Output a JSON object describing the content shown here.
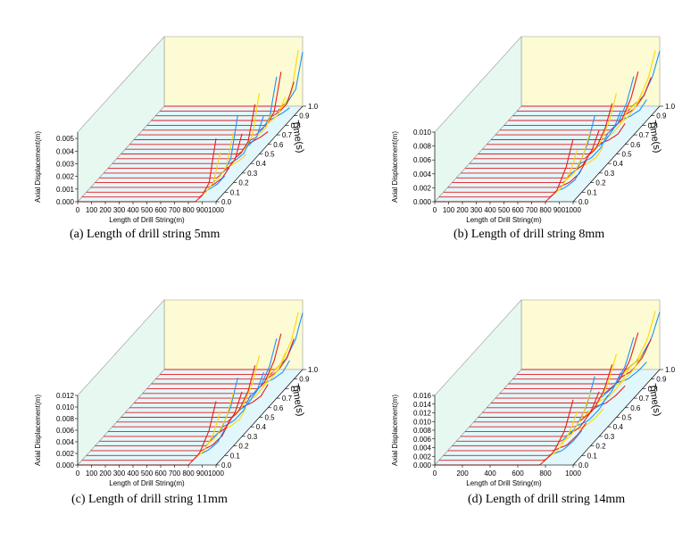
{
  "chart_data": [
    {
      "type": "line",
      "projection": "3d-waterfall",
      "caption": "(a) Length of drill string 5mm",
      "xlabel": "Length of Drill String(m)",
      "ylabel": "Axial Displacement(m)",
      "zlabel": "Time(s)",
      "x_ticks": [
        "0",
        "100",
        "200",
        "300",
        "400",
        "500",
        "600",
        "700",
        "800",
        "900",
        "1000"
      ],
      "y_ticks": [
        "0.000",
        "0.001",
        "0.002",
        "0.003",
        "0.004",
        "0.005"
      ],
      "z_ticks": [
        "0.0",
        "0.1",
        "0.2",
        "0.3",
        "0.4",
        "0.5",
        "0.6",
        "0.7",
        "0.8",
        "0.9",
        "1.0"
      ],
      "xlim": [
        0,
        1000
      ],
      "ylim": [
        0,
        0.0055
      ],
      "zlim": [
        0,
        1.0
      ],
      "series_count": 21,
      "front_profile": {
        "x": [
          0,
          850,
          900,
          950,
          1000
        ],
        "y": [
          0,
          0,
          0.0005,
          0.0015,
          0.005
        ]
      },
      "back_profile": {
        "x": [
          0,
          850,
          900,
          950,
          1000
        ],
        "y": [
          0,
          0,
          0.0003,
          0.0006,
          0.001
        ]
      },
      "line_colors": [
        "#e51b1b",
        "#ffd700",
        "#2ecc40",
        "#1e90ff",
        "#0000cd"
      ]
    },
    {
      "type": "line",
      "projection": "3d-waterfall",
      "caption": "(b) Length of drill string 8mm",
      "xlabel": "Length of Drill String(m)",
      "ylabel": "Axial Displacement(m)",
      "zlabel": "Time(s)",
      "x_ticks": [
        "0",
        "100",
        "200",
        "300",
        "400",
        "500",
        "600",
        "700",
        "800",
        "900",
        "1000"
      ],
      "y_ticks": [
        "0.000",
        "0.002",
        "0.004",
        "0.006",
        "0.008",
        "0.010"
      ],
      "z_ticks": [
        "0.0",
        "0.1",
        "0.2",
        "0.3",
        "0.4",
        "0.5",
        "0.6",
        "0.7",
        "0.8",
        "0.9",
        "1.0"
      ],
      "xlim": [
        0,
        1000
      ],
      "ylim": [
        0,
        0.01
      ],
      "zlim": [
        0,
        1.0
      ],
      "series_count": 21,
      "front_profile": {
        "x": [
          0,
          800,
          880,
          950,
          1000
        ],
        "y": [
          0,
          0,
          0.0015,
          0.005,
          0.009
        ]
      },
      "back_profile": {
        "x": [
          0,
          800,
          880,
          950,
          1000
        ],
        "y": [
          0,
          0,
          0.0006,
          0.0015,
          0.003
        ]
      },
      "line_colors": [
        "#e51b1b",
        "#ffd700",
        "#2ecc40",
        "#1e90ff",
        "#0000cd"
      ]
    },
    {
      "type": "line",
      "projection": "3d-waterfall",
      "caption": "(c) Length of drill string 11mm",
      "xlabel": "Length of Drill String(m)",
      "ylabel": "Axial Displacement(m)",
      "zlabel": "Time(s)",
      "x_ticks": [
        "0",
        "100",
        "200",
        "300",
        "400",
        "500",
        "600",
        "700",
        "800",
        "900",
        "1000"
      ],
      "y_ticks": [
        "0.000",
        "0.002",
        "0.004",
        "0.006",
        "0.008",
        "0.010",
        "0.012"
      ],
      "z_ticks": [
        "0.0",
        "0.1",
        "0.2",
        "0.3",
        "0.4",
        "0.5",
        "0.6",
        "0.7",
        "0.8",
        "0.9",
        "1.0"
      ],
      "xlim": [
        0,
        1000
      ],
      "ylim": [
        0,
        0.012
      ],
      "zlim": [
        0,
        1.0
      ],
      "series_count": 21,
      "front_profile": {
        "x": [
          0,
          800,
          880,
          950,
          1000
        ],
        "y": [
          0,
          0,
          0.002,
          0.006,
          0.011
        ]
      },
      "back_profile": {
        "x": [
          0,
          800,
          880,
          950,
          1000
        ],
        "y": [
          0,
          0,
          0.0008,
          0.002,
          0.004
        ]
      },
      "line_colors": [
        "#e51b1b",
        "#ffd700",
        "#2ecc40",
        "#1e90ff",
        "#0000cd"
      ]
    },
    {
      "type": "line",
      "projection": "3d-waterfall",
      "caption": "(d) Length of drill string 14mm",
      "xlabel": "Length of Drill String(m)",
      "ylabel": "Axial Displacement(m)",
      "zlabel": "Time(s)",
      "x_ticks": [
        "0",
        "200",
        "400",
        "600",
        "800",
        "1000"
      ],
      "y_ticks": [
        "0.000",
        "0.002",
        "0.004",
        "0.006",
        "0.008",
        "0.010",
        "0.012",
        "0.014",
        "0.016"
      ],
      "z_ticks": [
        "0.0",
        "0.1",
        "0.2",
        "0.3",
        "0.4",
        "0.5",
        "0.6",
        "0.7",
        "0.8",
        "0.9",
        "1.0"
      ],
      "xlim": [
        0,
        1000
      ],
      "ylim": [
        0,
        0.016
      ],
      "zlim": [
        0,
        1.0
      ],
      "series_count": 21,
      "front_profile": {
        "x": [
          0,
          760,
          860,
          940,
          1000
        ],
        "y": [
          0,
          0,
          0.003,
          0.008,
          0.015
        ]
      },
      "back_profile": {
        "x": [
          0,
          760,
          860,
          940,
          1000
        ],
        "y": [
          0,
          0,
          0.001,
          0.003,
          0.005
        ]
      },
      "line_colors": [
        "#e51b1b",
        "#ffd700",
        "#2ecc40",
        "#1e90ff",
        "#0000cd"
      ]
    }
  ]
}
